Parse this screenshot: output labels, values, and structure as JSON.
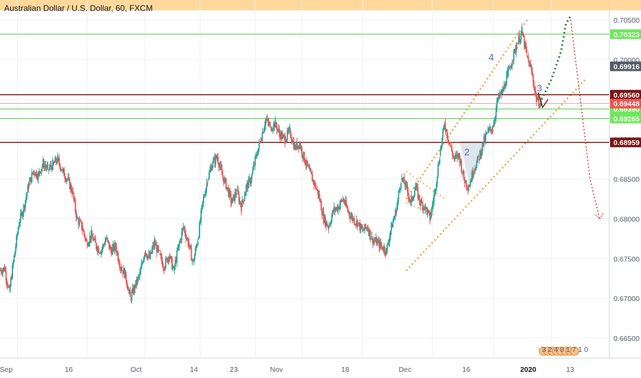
{
  "chart_data": {
    "type": "candlestick",
    "title": "Australian Dollar / U.S. Dollar, 60, FXCM",
    "ylim": [
      0.6625,
      0.7075
    ],
    "y_ticks": [
      0.665,
      0.67,
      0.675,
      0.68,
      0.685,
      0.69,
      0.695,
      0.7,
      0.705
    ],
    "y_tick_labels": [
      "0.66500",
      "0.67000",
      "0.67500",
      "0.68000",
      "0.68500",
      "0.69000",
      "0.69500",
      "0.70000",
      "0.70500"
    ],
    "x_axis_labels": [
      {
        "label": "Sep",
        "bold": false
      },
      {
        "label": "16",
        "bold": false
      },
      {
        "label": "Oct",
        "bold": false
      },
      {
        "label": "14",
        "bold": false
      },
      {
        "label": "23",
        "bold": false
      },
      {
        "label": "Nov",
        "bold": false
      },
      {
        "label": "18",
        "bold": false
      },
      {
        "label": "Dec",
        "bold": false
      },
      {
        "label": "16",
        "bold": false
      },
      {
        "label": "2020",
        "bold": true
      },
      {
        "label": "13",
        "bold": false
      }
    ],
    "price_path": [
      [
        0,
        0.6735
      ],
      [
        1,
        0.6738
      ],
      [
        2,
        0.6708
      ],
      [
        3,
        0.6752
      ],
      [
        4,
        0.6795
      ],
      [
        5,
        0.6815
      ],
      [
        6,
        0.6842
      ],
      [
        7,
        0.686
      ],
      [
        8,
        0.6855
      ],
      [
        9,
        0.687
      ],
      [
        10,
        0.6862
      ],
      [
        11,
        0.6868
      ],
      [
        12,
        0.6875
      ],
      [
        13,
        0.686
      ],
      [
        14,
        0.685
      ],
      [
        15,
        0.6835
      ],
      [
        16,
        0.68
      ],
      [
        17,
        0.679
      ],
      [
        18,
        0.677
      ],
      [
        19,
        0.678
      ],
      [
        20,
        0.6765
      ],
      [
        21,
        0.676
      ],
      [
        22,
        0.6775
      ],
      [
        23,
        0.676
      ],
      [
        24,
        0.6765
      ],
      [
        25,
        0.674
      ],
      [
        26,
        0.673
      ],
      [
        27,
        0.67
      ],
      [
        28,
        0.6715
      ],
      [
        29,
        0.673
      ],
      [
        30,
        0.676
      ],
      [
        31,
        0.675
      ],
      [
        32,
        0.677
      ],
      [
        33,
        0.6755
      ],
      [
        34,
        0.674
      ],
      [
        35,
        0.6755
      ],
      [
        36,
        0.6735
      ],
      [
        37,
        0.6765
      ],
      [
        38,
        0.679
      ],
      [
        39,
        0.677
      ],
      [
        40,
        0.6745
      ],
      [
        41,
        0.6775
      ],
      [
        42,
        0.682
      ],
      [
        43,
        0.685
      ],
      [
        44,
        0.687
      ],
      [
        45,
        0.6878
      ],
      [
        46,
        0.6855
      ],
      [
        47,
        0.684
      ],
      [
        48,
        0.682
      ],
      [
        49,
        0.6835
      ],
      [
        50,
        0.6815
      ],
      [
        51,
        0.684
      ],
      [
        52,
        0.685
      ],
      [
        53,
        0.6878
      ],
      [
        54,
        0.69
      ],
      [
        55,
        0.6925
      ],
      [
        56,
        0.6915
      ],
      [
        57,
        0.692
      ],
      [
        58,
        0.6905
      ],
      [
        59,
        0.69
      ],
      [
        60,
        0.691
      ],
      [
        61,
        0.689
      ],
      [
        62,
        0.6895
      ],
      [
        63,
        0.6875
      ],
      [
        64,
        0.686
      ],
      [
        65,
        0.6845
      ],
      [
        66,
        0.683
      ],
      [
        67,
        0.68
      ],
      [
        68,
        0.679
      ],
      [
        69,
        0.681
      ],
      [
        70,
        0.6815
      ],
      [
        71,
        0.6825
      ],
      [
        72,
        0.681
      ],
      [
        73,
        0.68
      ],
      [
        74,
        0.6795
      ],
      [
        75,
        0.6785
      ],
      [
        76,
        0.679
      ],
      [
        77,
        0.6775
      ],
      [
        78,
        0.677
      ],
      [
        79,
        0.6765
      ],
      [
        80,
        0.676
      ],
      [
        81,
        0.679
      ],
      [
        82,
        0.681
      ],
      [
        83,
        0.685
      ],
      [
        84,
        0.6842
      ],
      [
        85,
        0.682
      ],
      [
        86,
        0.684
      ],
      [
        87,
        0.682
      ],
      [
        88,
        0.6815
      ],
      [
        89,
        0.68
      ],
      [
        90,
        0.6835
      ],
      [
        91,
        0.688
      ],
      [
        92,
        0.692
      ],
      [
        93,
        0.6895
      ],
      [
        94,
        0.6875
      ],
      [
        95,
        0.688
      ],
      [
        96,
        0.685
      ],
      [
        97,
        0.684
      ],
      [
        98,
        0.6862
      ],
      [
        99,
        0.6875
      ],
      [
        100,
        0.6895
      ],
      [
        101,
        0.691
      ],
      [
        102,
        0.6915
      ],
      [
        103,
        0.695
      ],
      [
        104,
        0.696
      ],
      [
        105,
        0.698
      ],
      [
        106,
        0.7
      ],
      [
        107,
        0.702
      ],
      [
        108,
        0.7035
      ],
      [
        109,
        0.7005
      ],
      [
        110,
        0.6985
      ],
      [
        111,
        0.695
      ],
      [
        112,
        0.6945
      ]
    ],
    "series": [
      {
        "name": "",
        "type": "dotted",
        "color": "#2e7d32",
        "values": [
          [
            112,
            0.695
          ],
          [
            114,
            0.6975
          ],
          [
            116,
            0.701
          ],
          [
            117,
            0.7045
          ],
          [
            118,
            0.7055
          ]
        ]
      },
      {
        "name": "",
        "type": "dotted",
        "color": "#e53935",
        "values": [
          [
            118,
            0.705
          ],
          [
            120,
            0.695
          ],
          [
            122,
            0.685
          ],
          [
            124,
            0.68
          ]
        ]
      }
    ],
    "horizontal_levels": [
      {
        "value": 0.7032,
        "label": "0.70323",
        "style": "green",
        "color": "#4cd13b"
      },
      {
        "value": 0.6956,
        "label": "0.69560",
        "style": "dark-red",
        "color": "#8b1a1a"
      },
      {
        "value": 0.6945,
        "label": "0.69448",
        "style": "pink",
        "color": "#f5a3b0"
      },
      {
        "value": 0.6938,
        "label": "0.69390",
        "style": "green",
        "color": "#4cd13b"
      },
      {
        "value": 0.6926,
        "label": "0.69265",
        "style": "green",
        "color": "#4cd13b"
      },
      {
        "value": 0.6896,
        "label": "0.68959",
        "style": "dark-red",
        "color": "#8b1a1a"
      }
    ],
    "current_price": {
      "value": 0.69916,
      "label": "0.69916",
      "color": "#555b68"
    },
    "price_badge": {
      "value": 0.69448,
      "label": "0.69448",
      "color": "#ef5350"
    },
    "top_band": {
      "from": 0.7062,
      "to": 0.7075,
      "color": "#ffd28a"
    },
    "wave_labels": [
      {
        "text": "4",
        "x": 101,
        "y": 0.6999,
        "color": "#5c6bc0"
      },
      {
        "text": "3",
        "x": 111,
        "y": 0.696,
        "color": "#5c6bc0"
      },
      {
        "text": "2",
        "x": 96,
        "y": 0.688,
        "color": "#5c6bc0"
      }
    ],
    "event_badge_text": "3 2 4 0 1 7 1 0",
    "colors": {
      "up": "#26a69a",
      "down": "#ef5350",
      "grid": "#eef0f3",
      "axis_text": "#555b68",
      "channel": "#f59d39"
    }
  }
}
